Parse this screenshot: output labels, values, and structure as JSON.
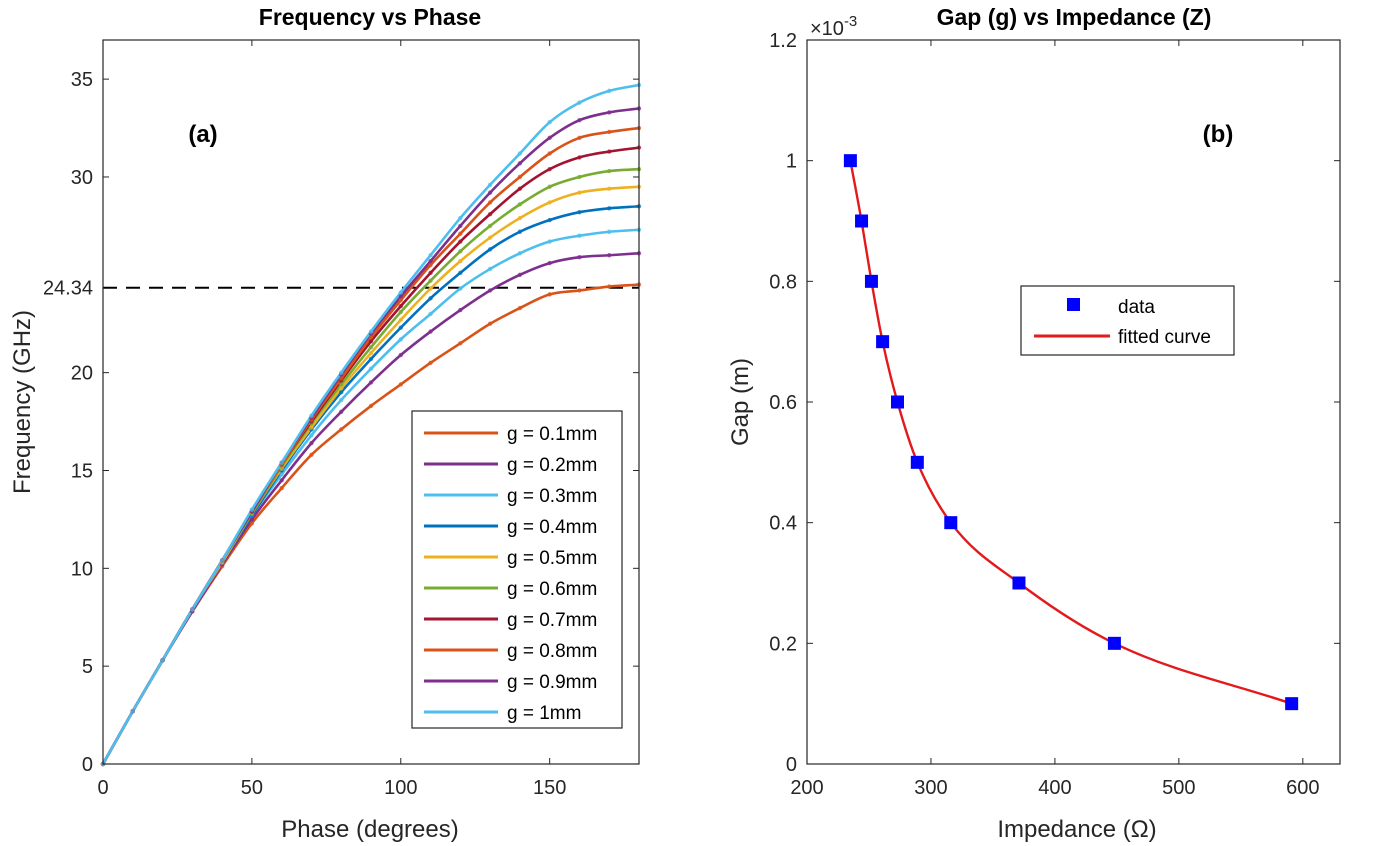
{
  "chart_data": [
    {
      "type": "line",
      "title": "Frequency vs Phase",
      "xlabel": "Phase (degrees)",
      "ylabel": "Frequency (GHz)",
      "xlim": [
        0,
        180
      ],
      "ylim": [
        0,
        37
      ],
      "xticks": [
        "0",
        "50",
        "100",
        "150"
      ],
      "yticks": [
        "0",
        "5",
        "10",
        "15",
        "20",
        "24.34",
        "30",
        "35"
      ],
      "xtick_values": [
        0,
        50,
        100,
        150
      ],
      "ytick_values": [
        0,
        5,
        10,
        15,
        20,
        24.34,
        30,
        35
      ],
      "panel_label": "(a)",
      "reference_line": {
        "y": 24.34,
        "style": "dashed",
        "color": "#000000"
      },
      "legend_position": "bottom-right",
      "x": [
        0,
        10,
        20,
        30,
        40,
        50,
        60,
        70,
        80,
        90,
        100,
        110,
        120,
        130,
        140,
        150,
        160,
        170,
        180
      ],
      "series": [
        {
          "name": "g = 0.1mm",
          "color": "#D95319",
          "peak": 24.5,
          "dots": [
            0,
            2.7,
            5.3,
            7.8,
            10.1,
            12.3,
            14.1,
            15.8,
            17.1,
            18.3,
            19.4,
            20.5,
            21.5,
            22.5,
            23.3,
            24.0,
            24.2,
            24.4,
            24.5
          ]
        },
        {
          "name": "g = 0.2mm",
          "color": "#7E2F8E",
          "peak": 26.1,
          "dots": [
            0,
            2.7,
            5.3,
            7.8,
            10.2,
            12.5,
            14.5,
            16.4,
            18.0,
            19.5,
            20.9,
            22.1,
            23.2,
            24.2,
            25.0,
            25.6,
            25.9,
            26.0,
            26.1
          ]
        },
        {
          "name": "g = 0.3mm",
          "color": "#4DBEEE",
          "peak": 27.3,
          "dots": [
            0,
            2.7,
            5.3,
            7.9,
            10.3,
            12.7,
            14.8,
            16.8,
            18.6,
            20.2,
            21.7,
            23.0,
            24.3,
            25.3,
            26.1,
            26.7,
            27.0,
            27.2,
            27.3
          ]
        },
        {
          "name": "g = 0.4mm",
          "color": "#0072BD",
          "peak": 28.5,
          "dots": [
            0,
            2.7,
            5.3,
            7.9,
            10.3,
            12.7,
            15.0,
            17.1,
            19.0,
            20.7,
            22.3,
            23.8,
            25.1,
            26.3,
            27.2,
            27.8,
            28.2,
            28.4,
            28.5
          ]
        },
        {
          "name": "g = 0.5mm",
          "color": "#EDB120",
          "peak": 29.5,
          "dots": [
            0,
            2.7,
            5.3,
            7.9,
            10.3,
            12.8,
            15.1,
            17.2,
            19.2,
            21.0,
            22.7,
            24.3,
            25.7,
            26.9,
            27.9,
            28.7,
            29.2,
            29.4,
            29.5
          ]
        },
        {
          "name": "g = 0.6mm",
          "color": "#77AC30",
          "peak": 30.4,
          "dots": [
            0,
            2.7,
            5.3,
            7.9,
            10.4,
            12.8,
            15.2,
            17.4,
            19.4,
            21.3,
            23.1,
            24.7,
            26.2,
            27.5,
            28.6,
            29.5,
            30.0,
            30.3,
            30.4
          ]
        },
        {
          "name": "g = 0.7mm",
          "color": "#A2142F",
          "peak": 31.5,
          "dots": [
            0,
            2.7,
            5.3,
            7.9,
            10.4,
            12.9,
            15.3,
            17.5,
            19.6,
            21.6,
            23.4,
            25.1,
            26.7,
            28.1,
            29.4,
            30.4,
            31.0,
            31.3,
            31.5
          ]
        },
        {
          "name": "g = 0.8mm",
          "color": "#D95319",
          "peak": 32.5,
          "dots": [
            0,
            2.7,
            5.3,
            7.9,
            10.4,
            12.9,
            15.3,
            17.6,
            19.7,
            21.8,
            23.7,
            25.5,
            27.1,
            28.7,
            30.0,
            31.2,
            32.0,
            32.3,
            32.5
          ]
        },
        {
          "name": "g = 0.9mm",
          "color": "#7E2F8E",
          "peak": 33.5,
          "dots": [
            0,
            2.7,
            5.3,
            7.9,
            10.4,
            12.9,
            15.4,
            17.7,
            19.9,
            22.0,
            23.9,
            25.7,
            27.5,
            29.2,
            30.7,
            32.0,
            32.9,
            33.3,
            33.5
          ]
        },
        {
          "name": "g = 1mm",
          "color": "#4DBEEE",
          "peak": 34.7,
          "dots": [
            0,
            2.7,
            5.3,
            7.9,
            10.4,
            13.0,
            15.4,
            17.8,
            20.0,
            22.1,
            24.1,
            26.0,
            27.9,
            29.6,
            31.2,
            32.8,
            33.8,
            34.4,
            34.7
          ]
        }
      ]
    },
    {
      "type": "scatter",
      "title": "Gap (g) vs Impedance (Z)",
      "xlabel": "Impedance (Ω)",
      "ylabel": "Gap (m)",
      "xlim": [
        200,
        630
      ],
      "ylim": [
        0,
        0.0012
      ],
      "xticks": [
        "200",
        "300",
        "400",
        "500",
        "600"
      ],
      "yticks": [
        "0",
        "0.2",
        "0.4",
        "0.6",
        "0.8",
        "1",
        "1.2"
      ],
      "xtick_values": [
        200,
        300,
        400,
        500,
        600
      ],
      "ytick_values": [
        0,
        0.0002,
        0.0004,
        0.0006,
        0.0008,
        0.001,
        0.0012
      ],
      "exponent_label": "×10",
      "exponent_power": "-3",
      "panel_label": "(b)",
      "legend_position": "top-right",
      "series": [
        {
          "name": "data",
          "color": "#0000FF",
          "marker": "square",
          "x": [
            235,
            244,
            252,
            261,
            273,
            289,
            316,
            371,
            448,
            591
          ],
          "y": [
            0.001,
            0.0009,
            0.0008,
            0.0007,
            0.0006,
            0.0005,
            0.0004,
            0.0003,
            0.0002,
            0.0001
          ]
        },
        {
          "name": "fitted curve",
          "color": "#E31A1C",
          "marker": "none",
          "x": [
            235,
            244,
            252,
            261,
            273,
            289,
            316,
            371,
            448,
            591
          ],
          "y": [
            0.001,
            0.0009,
            0.0008,
            0.0007,
            0.0006,
            0.0005,
            0.0004,
            0.0003,
            0.0002,
            0.0001
          ]
        }
      ]
    }
  ]
}
